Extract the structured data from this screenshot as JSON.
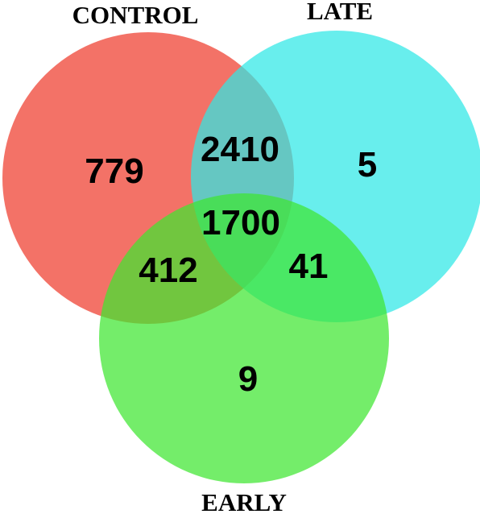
{
  "diagram": {
    "type": "venn",
    "sets": [
      {
        "id": "control",
        "label": "CONTROL",
        "color": "#ee3b2d"
      },
      {
        "id": "late",
        "label": "LATE",
        "color": "#2ee8e6"
      },
      {
        "id": "early",
        "label": "EARLY",
        "color": "#3ee630"
      }
    ],
    "regions": {
      "control_only": "779",
      "late_only": "5",
      "early_only": "9",
      "control_late": "2410",
      "control_early": "412",
      "late_early": "41",
      "all_three": "1700"
    }
  }
}
